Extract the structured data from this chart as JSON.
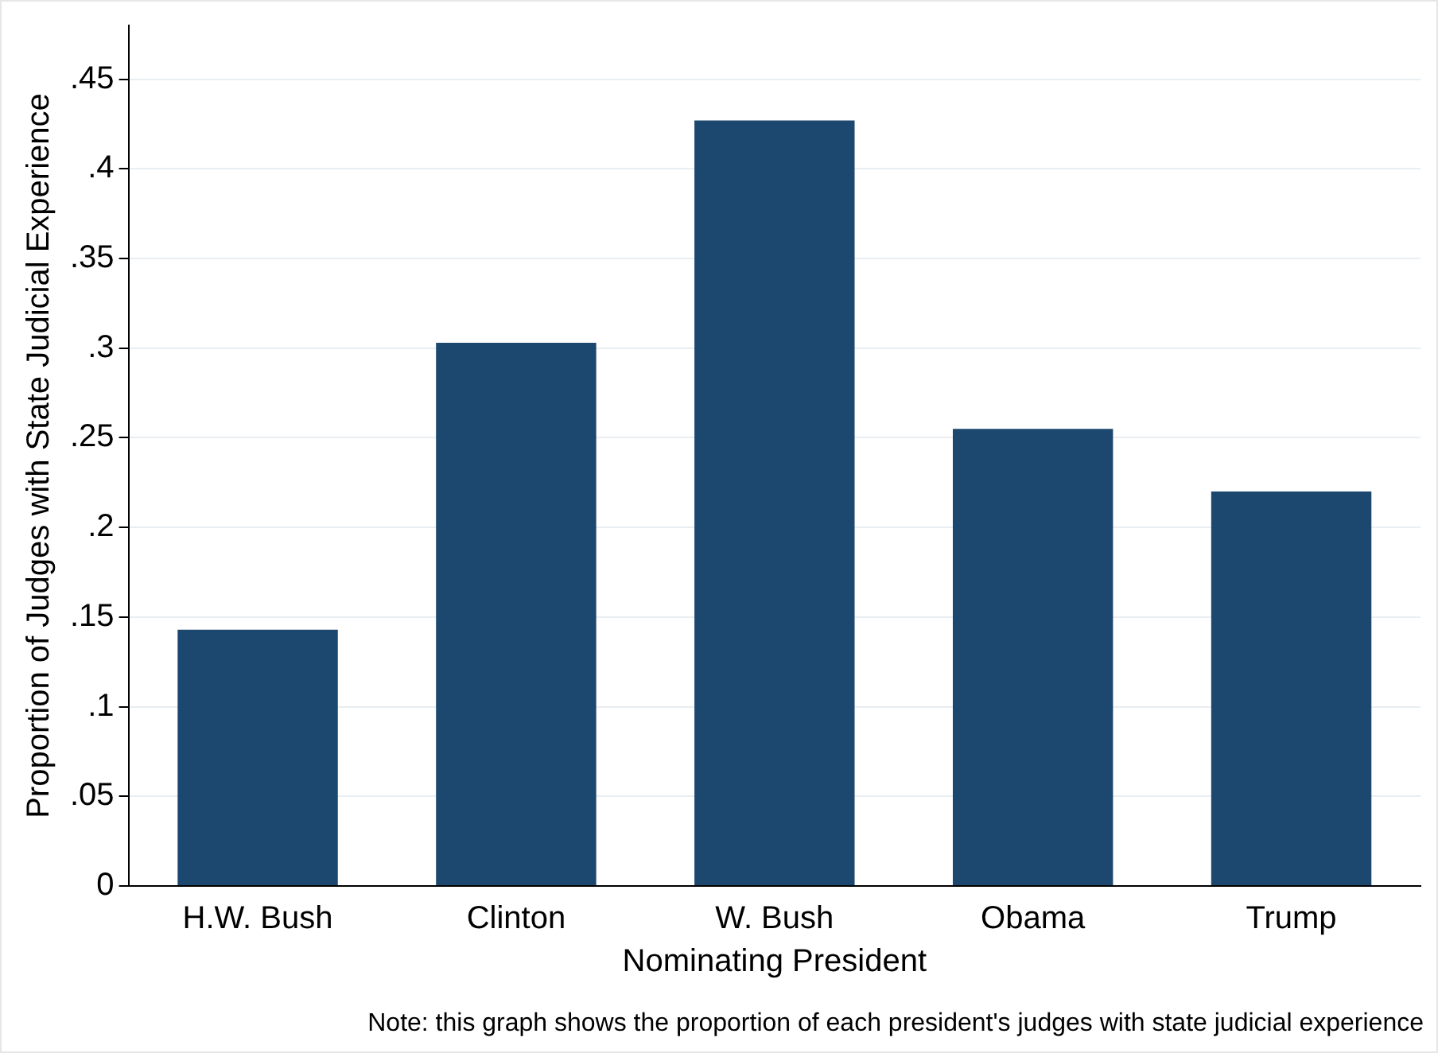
{
  "chart_data": {
    "type": "bar",
    "xlabel": "Nominating President",
    "ylabel": "Proportion of Judges with State Judicial Experience",
    "categories": [
      "H.W. Bush",
      "Clinton",
      "W. Bush",
      "Obama",
      "Trump"
    ],
    "values": [
      0.143,
      0.303,
      0.427,
      0.255,
      0.22
    ],
    "color": "#1c476f",
    "ylim": [
      0,
      0.48
    ],
    "yticks": [
      0,
      {
        "value": 0.05,
        "label": ".05"
      },
      {
        "value": 0.1,
        "label": ".1"
      },
      {
        "value": 0.15,
        "label": ".15"
      },
      {
        "value": 0.2,
        "label": ".2"
      },
      {
        "value": 0.25,
        "label": ".25"
      },
      {
        "value": 0.3,
        "label": ".3"
      },
      {
        "value": 0.35,
        "label": ".35"
      },
      {
        "value": 0.4,
        "label": ".4"
      },
      {
        "value": 0.45,
        "label": ".45"
      }
    ],
    "grid": "y",
    "annotations": [
      "Note: this graph shows the proportion of each president's judges with state judicial experience"
    ]
  }
}
